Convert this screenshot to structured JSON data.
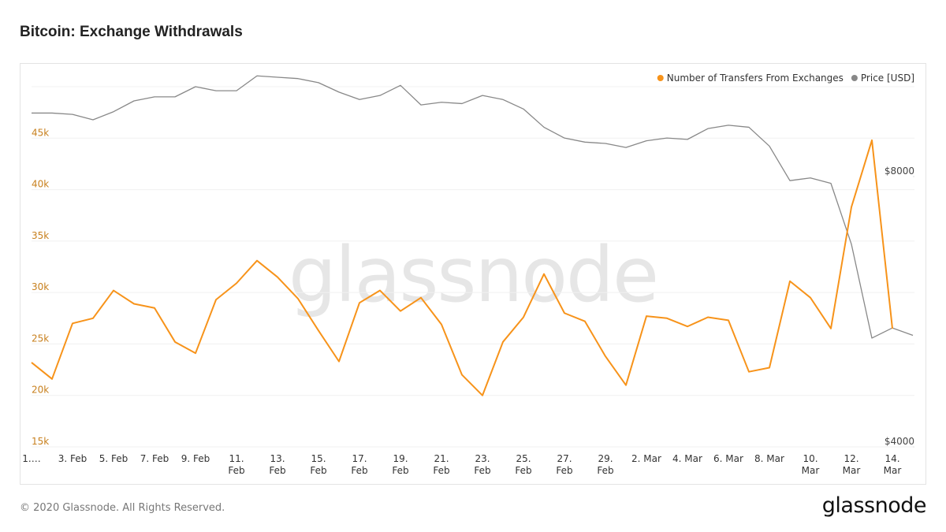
{
  "title": "Bitcoin: Exchange Withdrawals",
  "footer": "© 2020 Glassnode. All Rights Reserved.",
  "logo": "glassnode",
  "chart_data": {
    "type": "line",
    "watermark": "glassnode",
    "categories": [
      "1.…",
      null,
      "3. Feb",
      null,
      "5. Feb",
      null,
      "7. Feb",
      null,
      "9. Feb",
      null,
      "11. Feb",
      null,
      "13. Feb",
      null,
      "15. Feb",
      null,
      "17. Feb",
      null,
      "19. Feb",
      null,
      "21. Feb",
      null,
      "23. Feb",
      null,
      "25. Feb",
      null,
      "27. Feb",
      null,
      "29. Feb",
      null,
      "2. Mar",
      null,
      "4. Mar",
      null,
      "6. Mar",
      null,
      "8. Mar",
      null,
      "10. Mar",
      null,
      "12. Mar",
      null,
      "14. Mar",
      null
    ],
    "series": [
      {
        "name": "Number of Transfers From Exchanges",
        "color": "#f7931a",
        "values": [
          23200,
          21600,
          27000,
          27500,
          30200,
          28900,
          28500,
          25200,
          24100,
          29300,
          30900,
          33100,
          31500,
          29400,
          26300,
          23300,
          29000,
          30200,
          28200,
          29500,
          26900,
          22000,
          20000,
          25200,
          27600,
          31800,
          28000,
          27200,
          23800,
          21000,
          27700,
          27500,
          26700,
          27600,
          27300,
          22300,
          22700,
          31100,
          29500,
          26500,
          38300,
          44800,
          26500,
          null
        ]
      },
      {
        "name": "Price [USD]",
        "color": "#888888",
        "axis": "y2",
        "values": [
          8940,
          8940,
          8920,
          8840,
          8960,
          9120,
          9180,
          9180,
          9330,
          9270,
          9270,
          9490,
          9470,
          9450,
          9390,
          9250,
          9140,
          9200,
          9350,
          9060,
          9100,
          9080,
          9200,
          9140,
          9000,
          8730,
          8570,
          8510,
          8490,
          8430,
          8530,
          8570,
          8550,
          8710,
          8760,
          8730,
          8450,
          7940,
          7980,
          7900,
          7000,
          5610,
          5760,
          5650
        ]
      }
    ],
    "ylim": [
      15000,
      50000
    ],
    "yticks": [
      {
        "value": 15000,
        "label": "15k"
      },
      {
        "value": 20000,
        "label": "20k"
      },
      {
        "value": 25000,
        "label": "25k"
      },
      {
        "value": 30000,
        "label": "30k"
      },
      {
        "value": 35000,
        "label": "35k"
      },
      {
        "value": 40000,
        "label": "40k"
      },
      {
        "value": 45000,
        "label": "45k"
      }
    ],
    "y2lim": [
      4000,
      9330
    ],
    "y2ticks": [
      {
        "value": 4000,
        "label": "$4000"
      },
      {
        "value": 8000,
        "label": "$8000"
      }
    ],
    "grid": true,
    "legend": "top-right"
  }
}
